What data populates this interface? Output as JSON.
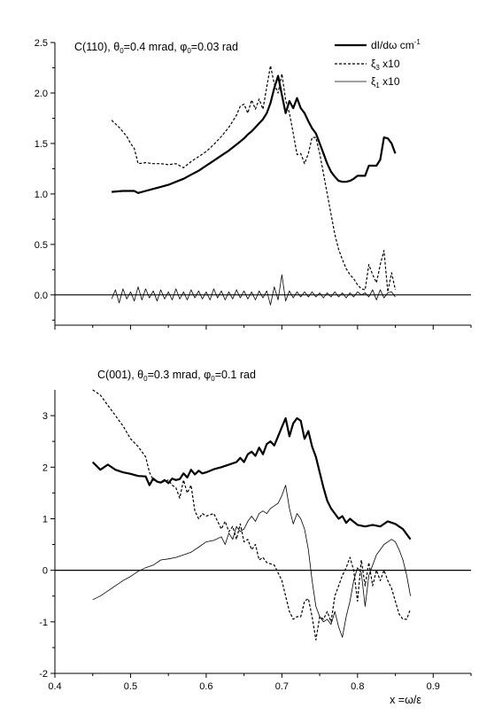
{
  "chart_data": [
    {
      "type": "line",
      "title_parts": [
        "C(110), θ",
        "0",
        "=0.4 mrad, φ",
        "0",
        "=0.03 rad"
      ],
      "xlim": [
        0.4,
        0.95
      ],
      "ylim": [
        -0.3,
        2.5
      ],
      "yticks": [
        0.0,
        0.5,
        1.0,
        1.5,
        2.0,
        2.5
      ],
      "ytick_labels": [
        "0.0",
        "0.5",
        "1.0",
        "1.5",
        "2.0",
        "2.5"
      ],
      "xticks": [
        0.4,
        0.5,
        0.6,
        0.7,
        0.8,
        0.9
      ],
      "show_xtick_labels": false,
      "legend_position": "top-right",
      "legend": [
        {
          "main": "dI/dω cm",
          "sup": "-1",
          "tail": "",
          "style": "thick"
        },
        {
          "main": "ξ",
          "sub": "3",
          "tail": " x10",
          "style": "dashed"
        },
        {
          "main": "ξ",
          "sub": "1",
          "tail": " x10",
          "style": "thin"
        }
      ],
      "series": [
        {
          "name": "dI/dω cm-1",
          "style": "thick",
          "x": [
            0.475,
            0.49,
            0.5,
            0.505,
            0.51,
            0.52,
            0.53,
            0.54,
            0.55,
            0.56,
            0.57,
            0.58,
            0.59,
            0.6,
            0.61,
            0.62,
            0.63,
            0.64,
            0.645,
            0.65,
            0.655,
            0.66,
            0.665,
            0.67,
            0.675,
            0.68,
            0.685,
            0.69,
            0.695,
            0.7,
            0.705,
            0.71,
            0.715,
            0.72,
            0.725,
            0.73,
            0.735,
            0.74,
            0.745,
            0.75,
            0.755,
            0.76,
            0.765,
            0.77,
            0.775,
            0.78,
            0.785,
            0.79,
            0.795,
            0.8,
            0.805,
            0.81,
            0.815,
            0.82,
            0.825,
            0.83,
            0.835,
            0.84,
            0.845,
            0.85
          ],
          "y": [
            1.02,
            1.03,
            1.03,
            1.03,
            1.01,
            1.03,
            1.05,
            1.07,
            1.09,
            1.12,
            1.15,
            1.19,
            1.23,
            1.28,
            1.33,
            1.38,
            1.43,
            1.49,
            1.52,
            1.55,
            1.59,
            1.62,
            1.66,
            1.7,
            1.74,
            1.8,
            1.9,
            2.05,
            2.17,
            1.98,
            1.8,
            1.92,
            1.85,
            1.95,
            1.85,
            1.8,
            1.72,
            1.65,
            1.6,
            1.5,
            1.4,
            1.3,
            1.22,
            1.17,
            1.13,
            1.12,
            1.12,
            1.13,
            1.15,
            1.18,
            1.18,
            1.18,
            1.28,
            1.28,
            1.28,
            1.34,
            1.56,
            1.55,
            1.5,
            1.4
          ]
        },
        {
          "name": "ξ3 x10",
          "style": "dashed",
          "x": [
            0.475,
            0.485,
            0.495,
            0.5,
            0.505,
            0.51,
            0.52,
            0.53,
            0.54,
            0.55,
            0.56,
            0.57,
            0.58,
            0.59,
            0.6,
            0.61,
            0.62,
            0.63,
            0.64,
            0.645,
            0.65,
            0.655,
            0.66,
            0.665,
            0.67,
            0.675,
            0.68,
            0.685,
            0.69,
            0.695,
            0.7,
            0.705,
            0.71,
            0.715,
            0.72,
            0.725,
            0.73,
            0.735,
            0.74,
            0.745,
            0.75,
            0.755,
            0.76,
            0.765,
            0.77,
            0.775,
            0.78,
            0.785,
            0.79,
            0.795,
            0.8,
            0.805,
            0.81,
            0.815,
            0.82,
            0.825,
            0.83,
            0.835,
            0.84,
            0.845,
            0.85
          ],
          "y": [
            1.73,
            1.66,
            1.57,
            1.5,
            1.45,
            1.3,
            1.31,
            1.3,
            1.3,
            1.29,
            1.3,
            1.26,
            1.32,
            1.37,
            1.42,
            1.49,
            1.57,
            1.66,
            1.78,
            1.87,
            1.89,
            1.8,
            1.93,
            1.84,
            1.94,
            1.84,
            2.06,
            2.27,
            2.09,
            2.0,
            2.19,
            1.93,
            1.8,
            1.6,
            1.39,
            1.4,
            1.3,
            1.4,
            1.56,
            1.56,
            1.4,
            1.2,
            1.0,
            0.8,
            0.6,
            0.45,
            0.35,
            0.26,
            0.2,
            0.16,
            0.1,
            0.06,
            0.05,
            0.3,
            0.2,
            0.12,
            0.3,
            0.44,
            0.03,
            0.22,
            0.05
          ]
        },
        {
          "name": "ξ1 x10",
          "style": "thin",
          "x": [
            0.475,
            0.48,
            0.485,
            0.49,
            0.495,
            0.5,
            0.505,
            0.51,
            0.515,
            0.52,
            0.525,
            0.53,
            0.535,
            0.54,
            0.545,
            0.55,
            0.555,
            0.56,
            0.565,
            0.57,
            0.575,
            0.58,
            0.585,
            0.59,
            0.595,
            0.6,
            0.605,
            0.61,
            0.615,
            0.62,
            0.625,
            0.63,
            0.635,
            0.64,
            0.645,
            0.65,
            0.655,
            0.66,
            0.665,
            0.67,
            0.675,
            0.68,
            0.685,
            0.69,
            0.695,
            0.7,
            0.705,
            0.71,
            0.715,
            0.72,
            0.725,
            0.73,
            0.735,
            0.74,
            0.745,
            0.75,
            0.755,
            0.76,
            0.765,
            0.77,
            0.775,
            0.78,
            0.785,
            0.79,
            0.795,
            0.8,
            0.805,
            0.81,
            0.815,
            0.82,
            0.825,
            0.83,
            0.835,
            0.84,
            0.845,
            0.85
          ],
          "y": [
            -0.04,
            0.05,
            -0.08,
            0.06,
            -0.04,
            0.03,
            -0.06,
            0.08,
            -0.05,
            0.06,
            -0.03,
            0.04,
            -0.06,
            0.05,
            -0.04,
            0.03,
            -0.05,
            0.06,
            -0.04,
            0.03,
            -0.05,
            0.05,
            -0.03,
            0.04,
            -0.04,
            0.03,
            -0.05,
            0.06,
            -0.03,
            0.04,
            -0.05,
            0.03,
            -0.04,
            0.05,
            -0.03,
            0.04,
            -0.04,
            0.03,
            -0.05,
            0.04,
            -0.03,
            0.04,
            -0.1,
            0.08,
            -0.05,
            0.2,
            -0.06,
            0.04,
            -0.03,
            0.03,
            -0.02,
            0.03,
            -0.02,
            0.03,
            -0.02,
            0.02,
            -0.03,
            0.02,
            -0.02,
            0.03,
            -0.02,
            0.02,
            -0.03,
            0.02,
            -0.02,
            0.03,
            0.0,
            0.02,
            -0.02,
            0.05,
            -0.05,
            0.05,
            -0.03,
            0.02,
            0.03,
            -0.02
          ]
        }
      ]
    },
    {
      "type": "line",
      "title_parts": [
        "C(001),  θ",
        "0",
        "=0.3 mrad, φ",
        "0",
        "=0.1 rad"
      ],
      "xlim": [
        0.4,
        0.95
      ],
      "ylim": [
        -2,
        3.5
      ],
      "yticks": [
        -2,
        -1,
        0,
        1,
        2,
        3
      ],
      "ytick_labels": [
        "-2",
        "-1",
        "0",
        "1",
        "2",
        "3"
      ],
      "xticks": [
        0.4,
        0.5,
        0.6,
        0.7,
        0.8,
        0.9
      ],
      "xtick_labels": [
        "0.4",
        "0.5",
        "0.6",
        "0.7",
        "0.8",
        "0.9"
      ],
      "show_xtick_labels": true,
      "xlabel": "x =ω/ε",
      "series": [
        {
          "name": "dI/dω cm-1",
          "style": "thick",
          "x": [
            0.45,
            0.46,
            0.47,
            0.48,
            0.49,
            0.5,
            0.51,
            0.52,
            0.525,
            0.53,
            0.535,
            0.54,
            0.545,
            0.55,
            0.555,
            0.56,
            0.565,
            0.57,
            0.575,
            0.58,
            0.585,
            0.59,
            0.595,
            0.6,
            0.61,
            0.62,
            0.63,
            0.64,
            0.645,
            0.65,
            0.655,
            0.66,
            0.665,
            0.67,
            0.675,
            0.68,
            0.685,
            0.69,
            0.695,
            0.7,
            0.705,
            0.71,
            0.715,
            0.72,
            0.725,
            0.73,
            0.735,
            0.74,
            0.745,
            0.75,
            0.755,
            0.76,
            0.765,
            0.77,
            0.775,
            0.78,
            0.785,
            0.79,
            0.8,
            0.81,
            0.82,
            0.83,
            0.84,
            0.85,
            0.86,
            0.87
          ],
          "y": [
            2.1,
            1.95,
            2.05,
            1.95,
            1.9,
            1.87,
            1.83,
            1.82,
            1.65,
            1.78,
            1.72,
            1.7,
            1.75,
            1.69,
            1.78,
            1.75,
            1.77,
            1.88,
            1.8,
            1.95,
            1.86,
            1.93,
            1.88,
            1.9,
            1.96,
            2.0,
            2.05,
            2.1,
            2.18,
            2.1,
            2.25,
            2.3,
            2.22,
            2.38,
            2.25,
            2.45,
            2.5,
            2.42,
            2.6,
            2.78,
            2.95,
            2.6,
            2.85,
            2.95,
            2.9,
            2.55,
            2.7,
            2.4,
            2.2,
            1.9,
            1.6,
            1.35,
            1.2,
            1.1,
            1.0,
            1.05,
            0.92,
            1.0,
            0.88,
            0.85,
            0.88,
            0.85,
            0.95,
            0.9,
            0.8,
            0.6
          ]
        },
        {
          "name": "ξ3 x10",
          "style": "dashed",
          "x": [
            0.45,
            0.46,
            0.47,
            0.48,
            0.49,
            0.5,
            0.51,
            0.52,
            0.525,
            0.53,
            0.54,
            0.55,
            0.555,
            0.56,
            0.565,
            0.57,
            0.575,
            0.58,
            0.585,
            0.59,
            0.595,
            0.6,
            0.61,
            0.62,
            0.625,
            0.63,
            0.635,
            0.64,
            0.645,
            0.65,
            0.655,
            0.66,
            0.665,
            0.67,
            0.675,
            0.68,
            0.69,
            0.7,
            0.705,
            0.71,
            0.715,
            0.72,
            0.725,
            0.73,
            0.735,
            0.74,
            0.745,
            0.75,
            0.755,
            0.76,
            0.765,
            0.77,
            0.775,
            0.78,
            0.785,
            0.79,
            0.795,
            0.8,
            0.805,
            0.81,
            0.815,
            0.82,
            0.825,
            0.83,
            0.835,
            0.84,
            0.845,
            0.85,
            0.855,
            0.86,
            0.865,
            0.87
          ],
          "y": [
            3.5,
            3.4,
            3.2,
            3.0,
            2.8,
            2.55,
            2.4,
            2.2,
            1.9,
            1.75,
            1.7,
            1.75,
            1.65,
            1.6,
            1.4,
            1.75,
            1.5,
            1.65,
            1.15,
            1.0,
            1.1,
            1.05,
            1.1,
            0.8,
            0.95,
            0.75,
            0.85,
            0.6,
            0.9,
            0.55,
            0.6,
            0.4,
            0.5,
            0.2,
            0.25,
            0.15,
            0.1,
            -0.2,
            -0.5,
            -0.8,
            -0.95,
            -0.9,
            -0.9,
            -0.6,
            -0.55,
            -0.9,
            -1.35,
            -0.9,
            -0.95,
            -0.8,
            -1.0,
            -0.5,
            -0.3,
            -0.1,
            0.05,
            0.25,
            0.0,
            -0.6,
            0.2,
            -0.3,
            0.15,
            -0.3,
            0.0,
            -0.2,
            0.0,
            -0.2,
            -0.35,
            -0.6,
            -0.85,
            -0.95,
            -0.95,
            -0.75
          ]
        },
        {
          "name": "ξ1 x10",
          "style": "thin",
          "x": [
            0.45,
            0.46,
            0.47,
            0.48,
            0.49,
            0.5,
            0.51,
            0.52,
            0.53,
            0.54,
            0.55,
            0.56,
            0.57,
            0.58,
            0.59,
            0.6,
            0.61,
            0.62,
            0.625,
            0.63,
            0.635,
            0.64,
            0.645,
            0.65,
            0.655,
            0.66,
            0.665,
            0.67,
            0.675,
            0.68,
            0.685,
            0.69,
            0.695,
            0.7,
            0.705,
            0.71,
            0.715,
            0.72,
            0.725,
            0.73,
            0.735,
            0.74,
            0.745,
            0.75,
            0.755,
            0.76,
            0.765,
            0.77,
            0.775,
            0.78,
            0.785,
            0.79,
            0.795,
            0.8,
            0.805,
            0.81,
            0.815,
            0.82,
            0.825,
            0.83,
            0.835,
            0.84,
            0.845,
            0.85,
            0.855,
            0.86,
            0.865,
            0.87
          ],
          "y": [
            -0.57,
            -0.5,
            -0.4,
            -0.3,
            -0.2,
            -0.12,
            -0.02,
            0.05,
            0.1,
            0.2,
            0.22,
            0.25,
            0.3,
            0.35,
            0.45,
            0.55,
            0.58,
            0.65,
            0.5,
            0.72,
            0.6,
            0.85,
            0.75,
            0.8,
            0.95,
            1.05,
            0.95,
            1.1,
            1.15,
            1.1,
            1.2,
            1.25,
            1.3,
            1.45,
            1.65,
            1.2,
            0.9,
            1.1,
            1.0,
            0.8,
            0.4,
            -0.2,
            -0.7,
            -0.9,
            -1.0,
            -0.95,
            -1.05,
            -0.8,
            -1.1,
            -1.3,
            -0.9,
            -0.6,
            -0.2,
            0.05,
            -0.05,
            -0.7,
            -0.1,
            0.1,
            0.3,
            0.4,
            0.5,
            0.55,
            0.6,
            0.55,
            0.4,
            0.2,
            -0.1,
            -0.5
          ]
        }
      ]
    }
  ]
}
